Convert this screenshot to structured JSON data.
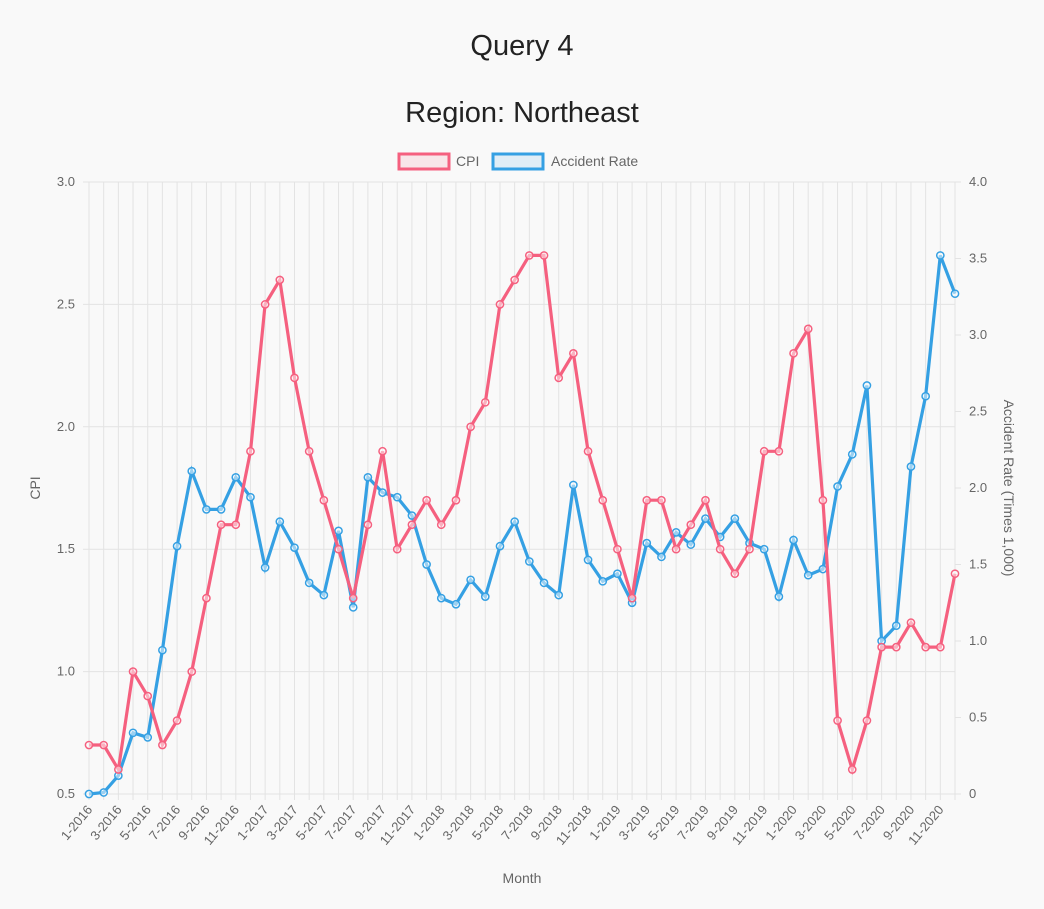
{
  "title": "Query 4",
  "subtitle": "Region: Northeast",
  "colors": {
    "cpi": "#f5607f",
    "accident": "#35a0e3",
    "grid": "#e3e3e3"
  },
  "chart_data": {
    "type": "line",
    "title": "Query 4",
    "subtitle": "Region: Northeast",
    "xlabel": "Month",
    "ylabel_left": "CPI",
    "ylabel_right": "Accident Rate (Times 1,000)",
    "ylim_left": [
      0.5,
      3.0
    ],
    "ylim_right": [
      0,
      4.0
    ],
    "yticks_left": [
      "0.5",
      "1.0",
      "1.5",
      "2.0",
      "2.5",
      "3.0"
    ],
    "yticks_right": [
      "0",
      "0.5",
      "1.0",
      "1.5",
      "2.0",
      "2.5",
      "3.0",
      "3.5",
      "4.0"
    ],
    "legend_position": "top",
    "grid": true,
    "x": [
      "1-2016",
      "2-2016",
      "3-2016",
      "4-2016",
      "5-2016",
      "6-2016",
      "7-2016",
      "8-2016",
      "9-2016",
      "10-2016",
      "11-2016",
      "12-2016",
      "1-2017",
      "2-2017",
      "3-2017",
      "4-2017",
      "5-2017",
      "6-2017",
      "7-2017",
      "8-2017",
      "9-2017",
      "10-2017",
      "11-2017",
      "12-2017",
      "1-2018",
      "2-2018",
      "3-2018",
      "4-2018",
      "5-2018",
      "6-2018",
      "7-2018",
      "8-2018",
      "9-2018",
      "10-2018",
      "11-2018",
      "12-2018",
      "1-2019",
      "2-2019",
      "3-2019",
      "4-2019",
      "5-2019",
      "6-2019",
      "7-2019",
      "8-2019",
      "9-2019",
      "10-2019",
      "11-2019",
      "12-2019",
      "1-2020",
      "2-2020",
      "3-2020",
      "4-2020",
      "5-2020",
      "6-2020",
      "7-2020",
      "8-2020",
      "9-2020",
      "10-2020",
      "11-2020",
      "12-2020"
    ],
    "x_tick_labels": [
      "1-2016",
      "3-2016",
      "5-2016",
      "7-2016",
      "9-2016",
      "11-2016",
      "1-2017",
      "3-2017",
      "5-2017",
      "7-2017",
      "9-2017",
      "11-2017",
      "1-2018",
      "3-2018",
      "5-2018",
      "7-2018",
      "9-2018",
      "11-2018",
      "1-2019",
      "3-2019",
      "5-2019",
      "7-2019",
      "9-2019",
      "11-2019",
      "1-2020",
      "3-2020",
      "5-2020",
      "7-2020",
      "9-2020",
      "11-2020"
    ],
    "series": [
      {
        "name": "CPI",
        "axis": "left",
        "values": [
          0.7,
          0.7,
          0.6,
          1.0,
          0.9,
          0.7,
          0.8,
          1.0,
          1.3,
          1.6,
          1.6,
          1.9,
          2.5,
          2.6,
          2.2,
          1.9,
          1.7,
          1.5,
          1.3,
          1.6,
          1.9,
          1.5,
          1.6,
          1.7,
          1.6,
          1.7,
          2.0,
          2.1,
          2.5,
          2.6,
          2.7,
          2.7,
          2.2,
          2.3,
          1.9,
          1.7,
          1.5,
          1.3,
          1.7,
          1.7,
          1.5,
          1.6,
          1.7,
          1.5,
          1.4,
          1.5,
          1.9,
          1.9,
          2.3,
          2.4,
          1.7,
          0.8,
          0.6,
          0.8,
          1.1,
          1.1,
          1.2,
          1.1,
          1.1,
          1.4
        ]
      },
      {
        "name": "Accident Rate",
        "axis": "right",
        "values": [
          0.0,
          0.01,
          0.12,
          0.4,
          0.37,
          0.94,
          1.62,
          2.11,
          1.86,
          1.86,
          2.07,
          1.94,
          1.48,
          1.78,
          1.61,
          1.38,
          1.3,
          1.72,
          1.22,
          2.07,
          1.97,
          1.94,
          1.82,
          1.5,
          1.28,
          1.24,
          1.4,
          1.29,
          1.62,
          1.78,
          1.52,
          1.38,
          1.3,
          2.02,
          1.53,
          1.39,
          1.44,
          1.25,
          1.64,
          1.55,
          1.71,
          1.63,
          1.8,
          1.68,
          1.8,
          1.64,
          1.6,
          1.29,
          1.66,
          1.43,
          1.47,
          2.01,
          2.22,
          2.67,
          1.0,
          1.1,
          2.14,
          2.6,
          3.52,
          3.27
        ]
      }
    ]
  }
}
